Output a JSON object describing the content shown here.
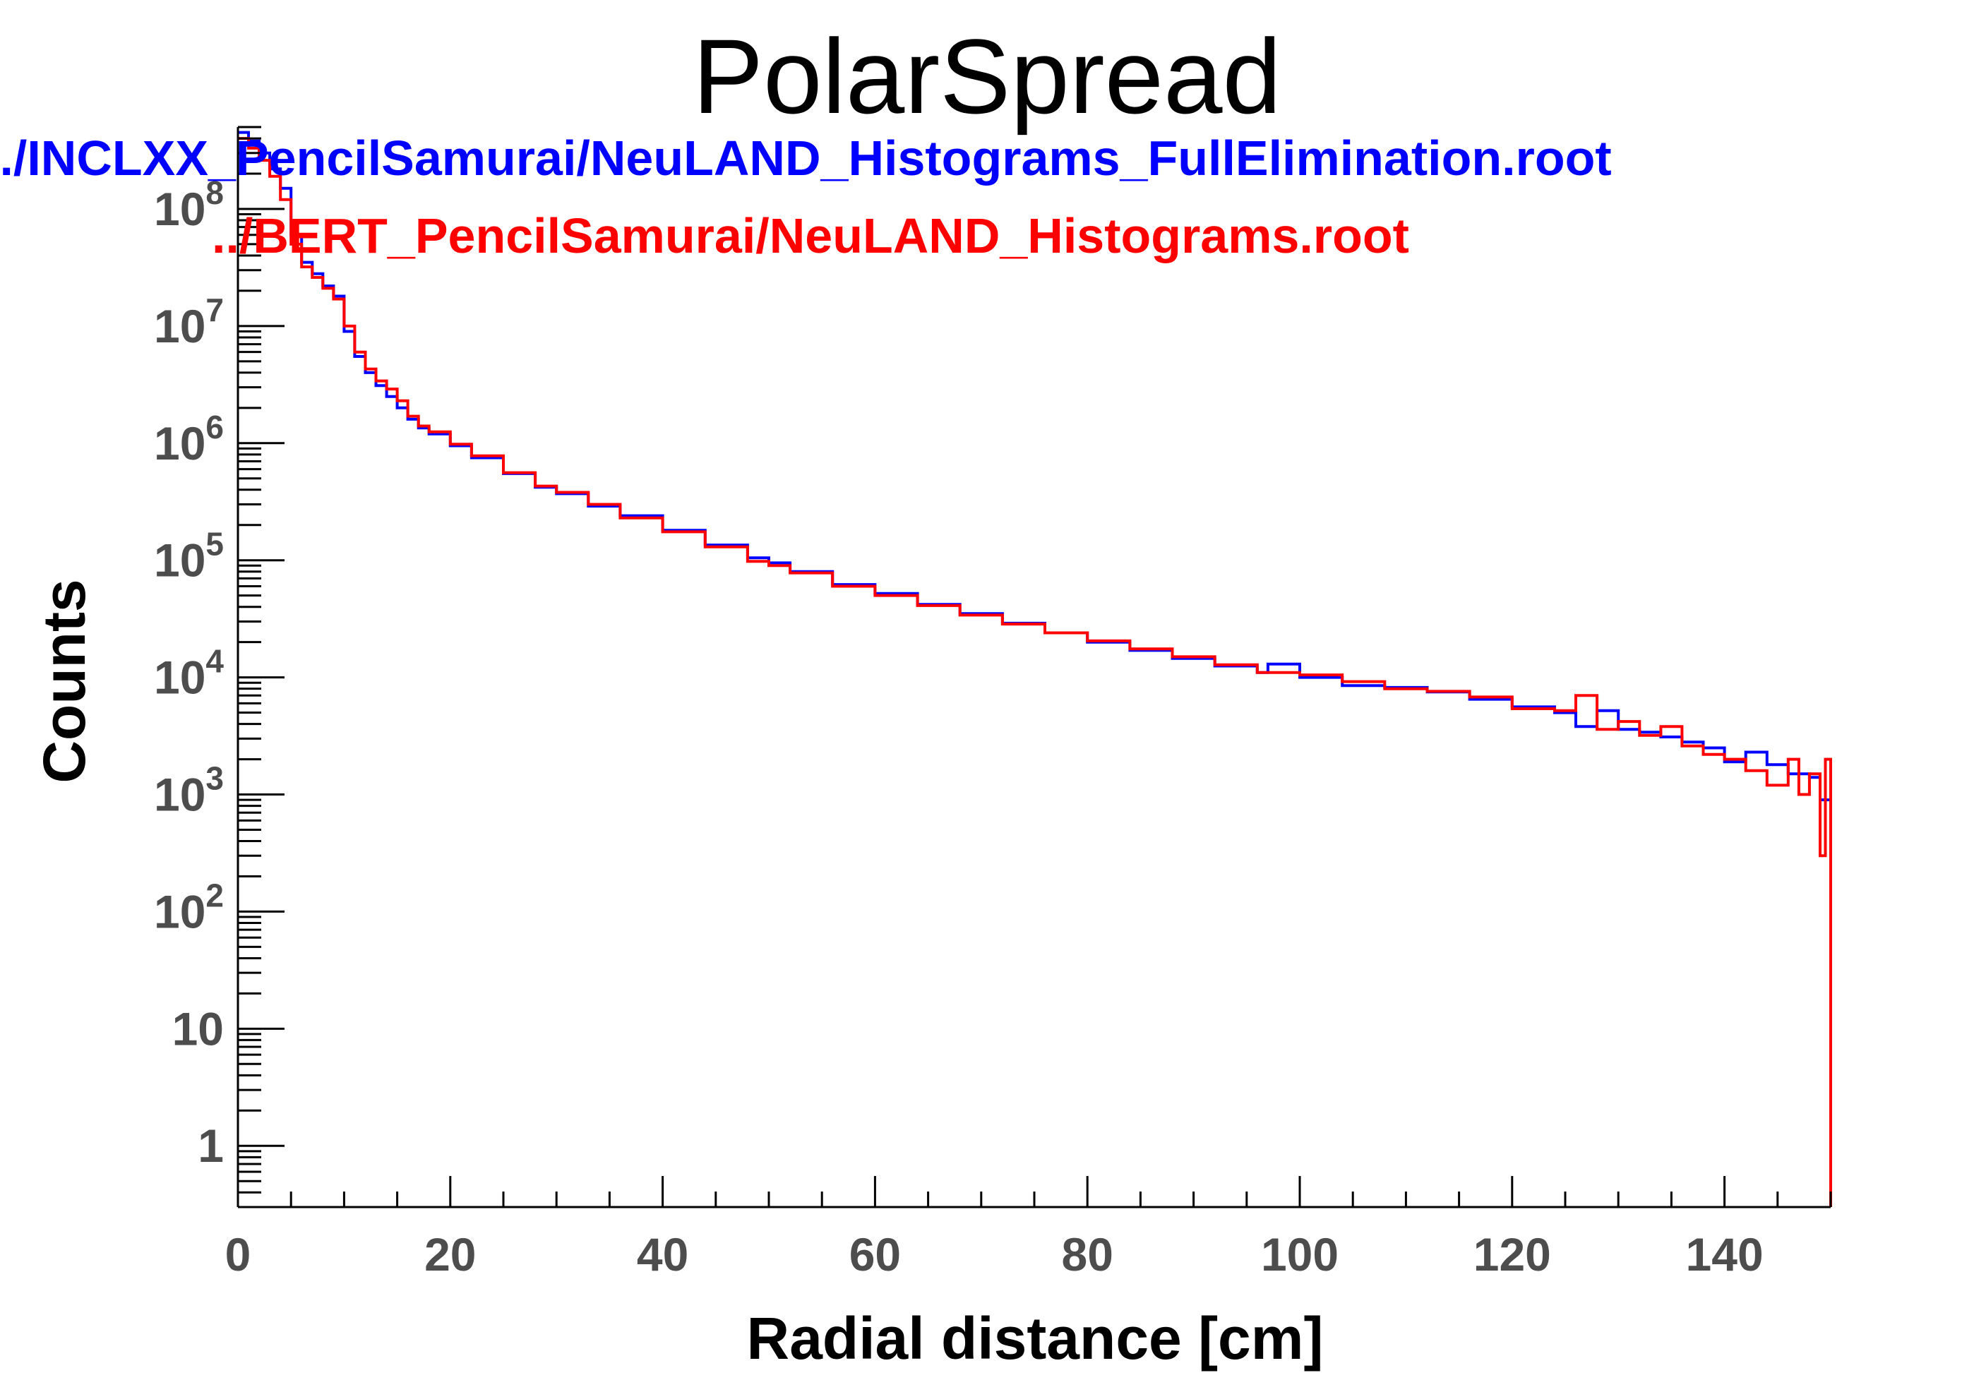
{
  "chart_data": {
    "type": "line",
    "title": "PolarSpread",
    "xlabel": "Radial distance [cm]",
    "ylabel": "Counts",
    "xlim": [
      0,
      150
    ],
    "ylim": [
      0.3,
      500000000
    ],
    "yscale": "log",
    "grid": false,
    "legend_position": "top-left",
    "x_ticks": [
      {
        "value": 0,
        "label": "0"
      },
      {
        "value": 20,
        "label": "20"
      },
      {
        "value": 40,
        "label": "40"
      },
      {
        "value": 60,
        "label": "60"
      },
      {
        "value": 80,
        "label": "80"
      },
      {
        "value": 100,
        "label": "100"
      },
      {
        "value": 120,
        "label": "120"
      },
      {
        "value": 140,
        "label": "140"
      }
    ],
    "y_ticks": [
      {
        "value": 1,
        "base": "1",
        "exp": ""
      },
      {
        "value": 10,
        "base": "10",
        "exp": ""
      },
      {
        "value": 100,
        "base": "10",
        "exp": "2"
      },
      {
        "value": 1000,
        "base": "10",
        "exp": "3"
      },
      {
        "value": 10000,
        "base": "10",
        "exp": "4"
      },
      {
        "value": 100000,
        "base": "10",
        "exp": "5"
      },
      {
        "value": 1000000,
        "base": "10",
        "exp": "6"
      },
      {
        "value": 10000000,
        "base": "10",
        "exp": "7"
      },
      {
        "value": 100000000,
        "base": "10",
        "exp": "8"
      }
    ],
    "series": [
      {
        "name": "../INCLXX_PencilSamurai/NeuLAND_Histograms_FullElimination.root",
        "color": "#0000ff",
        "x": [
          0,
          1,
          2,
          3,
          4,
          5,
          6,
          7,
          8,
          9,
          10,
          11,
          12,
          13,
          14,
          15,
          16,
          17,
          18,
          20,
          22,
          25,
          28,
          30,
          33,
          36,
          40,
          44,
          48,
          50,
          52,
          56,
          60,
          64,
          68,
          72,
          76,
          80,
          84,
          88,
          92,
          96,
          97,
          100,
          104,
          108,
          112,
          116,
          120,
          124,
          126,
          128,
          130,
          132,
          134,
          136,
          138,
          140,
          142,
          144,
          146,
          148,
          149,
          150
        ],
        "y": [
          450000000,
          380000000,
          300000000,
          220000000,
          150000000,
          60000000,
          35000000,
          28000000,
          22000000,
          18000000,
          9000000,
          5500000,
          4000000,
          3100000,
          2500000,
          2000000,
          1600000,
          1350000,
          1200000,
          950000,
          750000,
          550000,
          420000,
          370000,
          290000,
          240000,
          180000,
          135000,
          105000,
          95000,
          80000,
          62000,
          52000,
          42000,
          35000,
          29000,
          24000,
          20000,
          17000,
          14500,
          12500,
          11000,
          13000,
          10000,
          8500,
          8200,
          7500,
          6500,
          5600,
          5000,
          3800,
          5200,
          3600,
          3400,
          3100,
          2800,
          2500,
          1900,
          2300,
          1800,
          1500,
          1400,
          900,
          1200
        ]
      },
      {
        "name": "../BERT_PencilSamurai/NeuLAND_Histograms.root",
        "color": "#ff0000",
        "x": [
          0,
          1,
          2,
          3,
          4,
          5,
          6,
          7,
          8,
          9,
          10,
          11,
          12,
          13,
          14,
          15,
          16,
          17,
          18,
          20,
          22,
          25,
          28,
          30,
          33,
          36,
          40,
          44,
          48,
          50,
          52,
          56,
          60,
          64,
          68,
          72,
          76,
          80,
          84,
          88,
          92,
          96,
          100,
          104,
          108,
          112,
          116,
          120,
          124,
          126,
          128,
          130,
          132,
          134,
          136,
          138,
          140,
          142,
          144,
          146,
          147,
          148,
          149,
          149.5,
          150
        ],
        "y": [
          400000000,
          330000000,
          260000000,
          190000000,
          120000000,
          50000000,
          32000000,
          26000000,
          21000000,
          17000000,
          10000000,
          6000000,
          4300000,
          3400000,
          2900000,
          2300000,
          1700000,
          1400000,
          1250000,
          980000,
          780000,
          560000,
          430000,
          380000,
          300000,
          230000,
          175000,
          130000,
          98000,
          90000,
          78000,
          60000,
          50000,
          41000,
          34000,
          28500,
          24000,
          20500,
          17500,
          15000,
          12800,
          11000,
          10500,
          9200,
          8000,
          7600,
          6800,
          5400,
          5200,
          7000,
          3600,
          4200,
          3200,
          3800,
          2600,
          2200,
          2000,
          1600,
          1200,
          2000,
          1000,
          1500,
          300,
          2000,
          0.3
        ]
      }
    ]
  }
}
